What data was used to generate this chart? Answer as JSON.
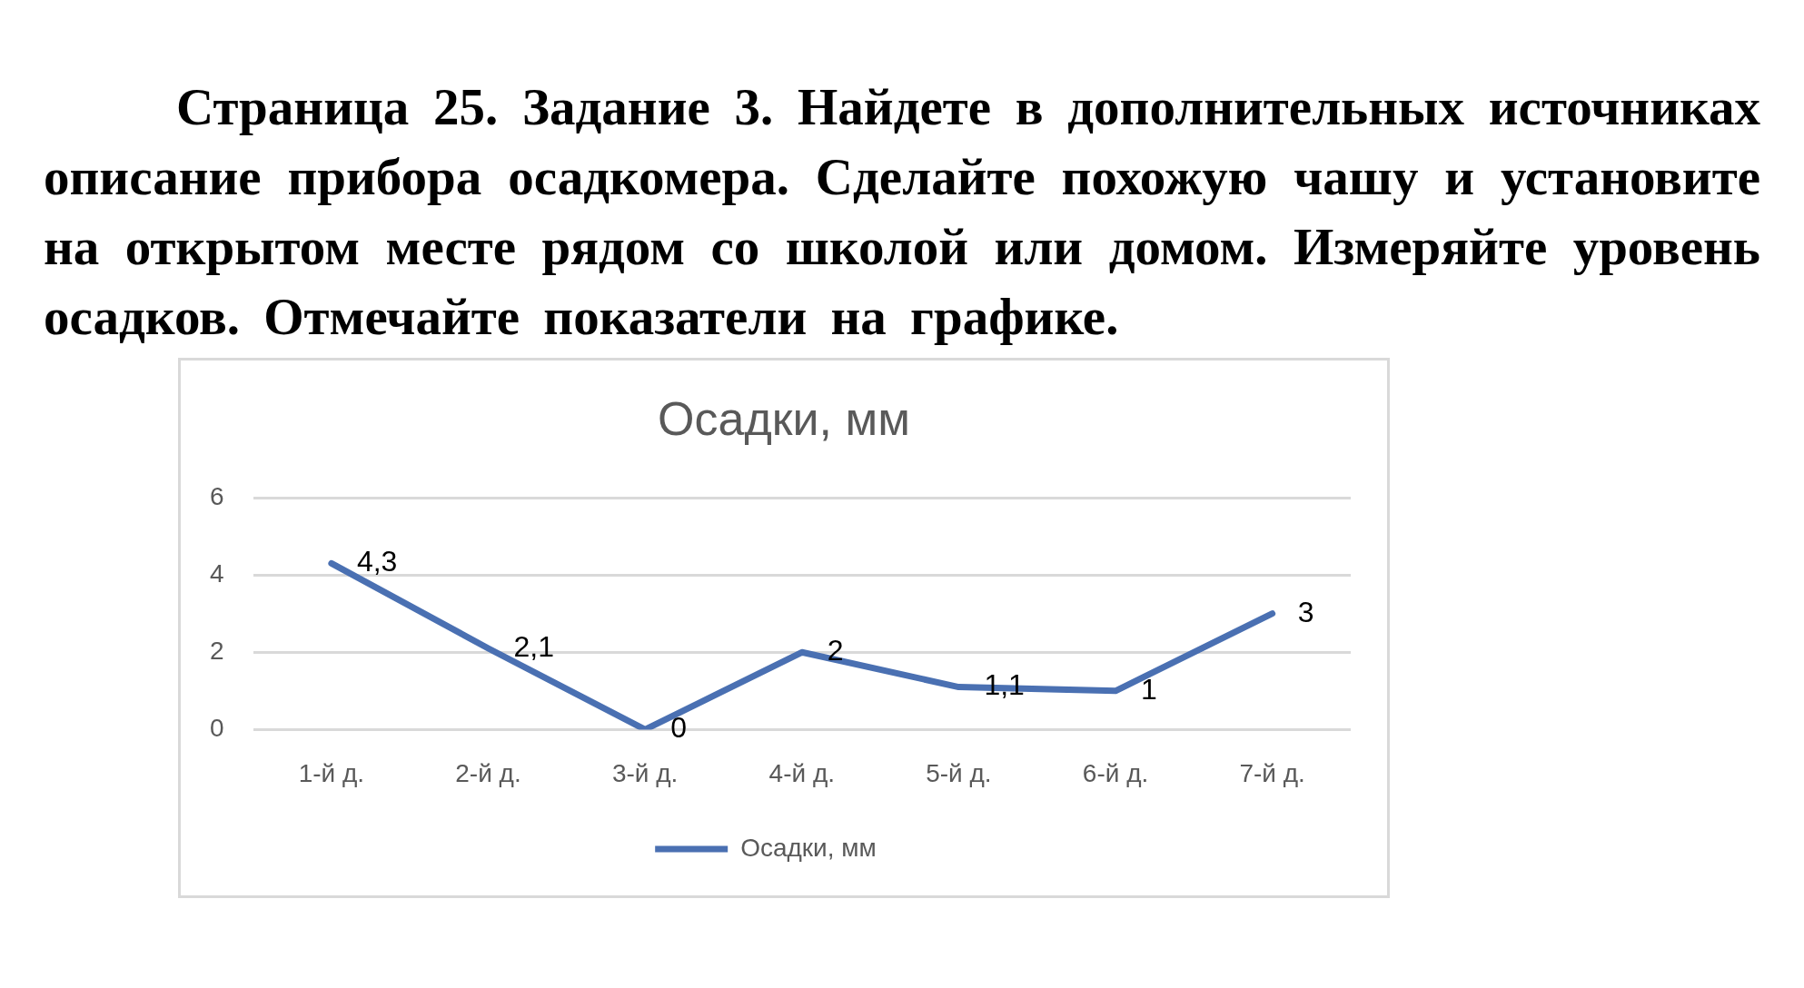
{
  "chart_data": {
    "type": "line",
    "title": "Осадки, мм",
    "annotations": [
      "Страница 25. Задание 3. Найдете в дополнительных источниках описание прибора осадкомера. Сделайте похожую чашу и установите на открытом месте рядом со школой или домом. Измеряйте уровень осадков. Отмечайте показатели на графике."
    ],
    "categories": [
      "1-й д.",
      "2-й д.",
      "3-й д.",
      "4-й д.",
      "5-й д.",
      "6-й д.",
      "7-й д."
    ],
    "series": [
      {
        "name": "Осадки, мм",
        "color": "#4a70b2",
        "values": [
          4.3,
          2.1,
          0,
          2,
          1.1,
          1,
          3
        ],
        "value_labels": [
          "4,3",
          "2,1",
          "0",
          "2",
          "1,1",
          "1",
          "3"
        ]
      }
    ],
    "ylim": [
      0,
      6
    ],
    "yticks": [
      0,
      2,
      4,
      6
    ],
    "grid": "y",
    "legend": "bottom",
    "marker": "none",
    "line_style": "solid"
  }
}
